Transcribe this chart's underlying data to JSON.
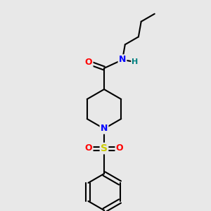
{
  "background_color": "#e8e8e8",
  "bond_color": "#000000",
  "bond_width": 1.5,
  "atom_colors": {
    "C": "#000000",
    "N": "#0000ff",
    "O": "#ff0000",
    "S": "#cccc00",
    "Cl": "#00aa00",
    "H": "#008080"
  },
  "fig_width": 3.0,
  "fig_height": 3.0,
  "dpi": 100
}
